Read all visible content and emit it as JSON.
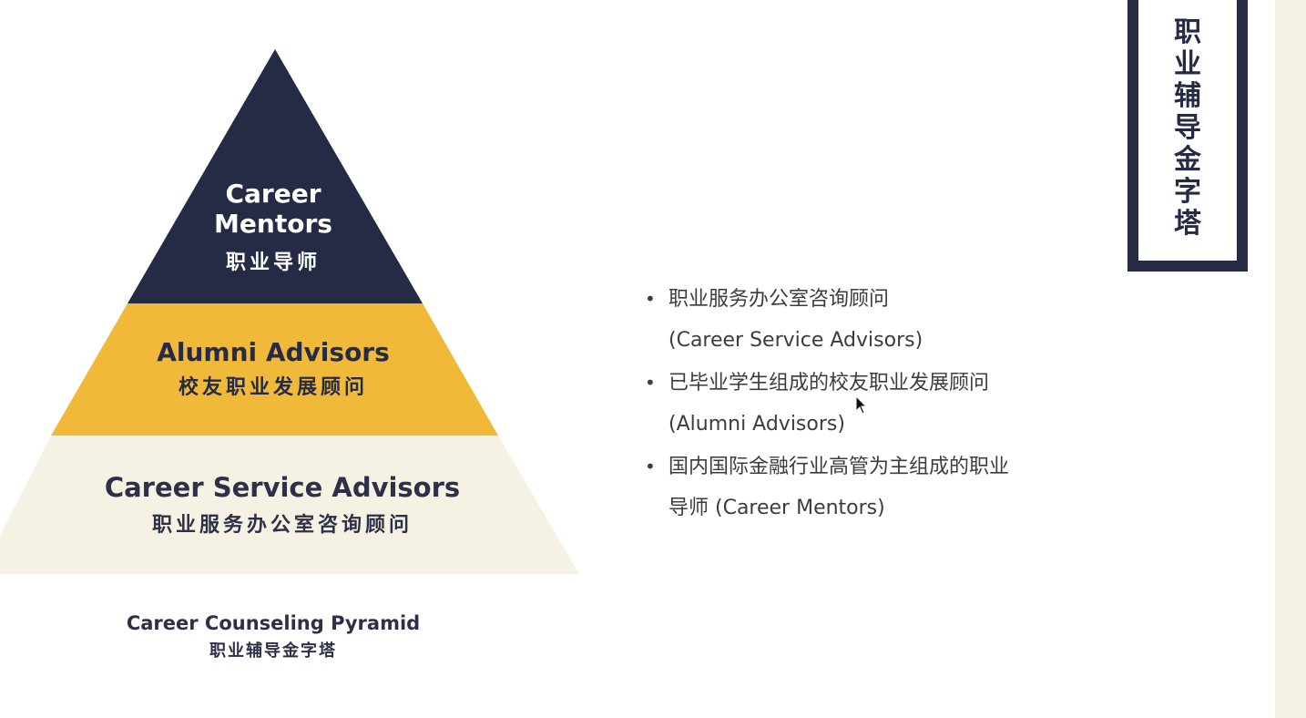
{
  "pyramid": {
    "tiers": [
      {
        "name_en_line1": "Career",
        "name_en_line2": "Mentors",
        "name_cn": "职业导师",
        "color": "#262b45"
      },
      {
        "name_en": "Alumni Advisors",
        "name_cn": "校友职业发展顾问",
        "color": "#f0b93a"
      },
      {
        "name_en": "Career Service Advisors",
        "name_cn": "职业服务办公室咨询顾问",
        "color": "#f5f2e4"
      }
    ],
    "caption_en": "Career Counseling Pyramid",
    "caption_cn": "职业辅导金字塔"
  },
  "bullets": [
    {
      "line1": "职业服务办公室咨询顾问",
      "line2": "(Career Service Advisors)"
    },
    {
      "line1": "已毕业学生组成的校友职业发展顾问",
      "line2": "(Alumni Advisors)"
    },
    {
      "line1": "国内国际金融行业高管为主组成的职业",
      "line2": "导师 (Career Mentors)"
    }
  ],
  "side_title": [
    "职",
    "业",
    "辅",
    "导",
    "金",
    "字",
    "塔"
  ],
  "colors": {
    "navy": "#262b45",
    "gold": "#f0b93a",
    "cream": "#f5f2e4",
    "bullet_text": "#3c3c3c"
  }
}
